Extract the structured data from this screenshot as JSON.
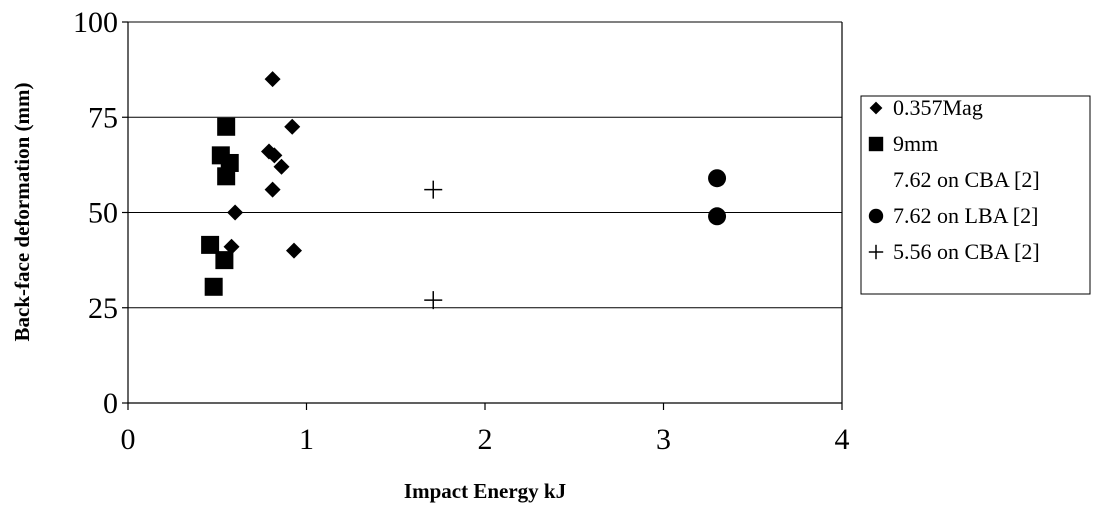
{
  "chart_data": {
    "type": "scatter",
    "title": "",
    "xlabel": "Impact Energy kJ",
    "ylabel": "Back-face deformation (mm)",
    "xlim": [
      0,
      4
    ],
    "ylim": [
      0,
      100
    ],
    "x_ticks": [
      "0",
      "1",
      "2",
      "3",
      "4"
    ],
    "y_ticks": [
      "0",
      "25",
      "50",
      "75",
      "100"
    ],
    "grid": "horizontal",
    "legend_position": "right",
    "series": [
      {
        "name": "0.357Mag",
        "marker": "diamond",
        "color": "#000000",
        "points": [
          {
            "x": 0.81,
            "y": 85
          },
          {
            "x": 0.92,
            "y": 72.5
          },
          {
            "x": 0.79,
            "y": 66
          },
          {
            "x": 0.82,
            "y": 65
          },
          {
            "x": 0.86,
            "y": 62
          },
          {
            "x": 0.81,
            "y": 56
          },
          {
            "x": 0.6,
            "y": 50
          },
          {
            "x": 0.58,
            "y": 41
          },
          {
            "x": 0.93,
            "y": 40
          }
        ]
      },
      {
        "name": "9mm",
        "marker": "square",
        "color": "#000000",
        "points": [
          {
            "x": 0.55,
            "y": 72.5
          },
          {
            "x": 0.52,
            "y": 65
          },
          {
            "x": 0.57,
            "y": 63
          },
          {
            "x": 0.55,
            "y": 59.5
          },
          {
            "x": 0.46,
            "y": 41.5
          },
          {
            "x": 0.54,
            "y": 37.5
          },
          {
            "x": 0.48,
            "y": 30.5
          }
        ]
      },
      {
        "name": "7.62 on CBA [2]",
        "marker": "none",
        "color": "#000000",
        "points": []
      },
      {
        "name": "7.62 on LBA [2]",
        "marker": "circle",
        "color": "#000000",
        "points": [
          {
            "x": 3.3,
            "y": 59
          },
          {
            "x": 3.3,
            "y": 49
          }
        ]
      },
      {
        "name": "5.56 on CBA [2]",
        "marker": "plus",
        "color": "#000000",
        "points": [
          {
            "x": 1.71,
            "y": 56
          },
          {
            "x": 1.71,
            "y": 27
          }
        ]
      }
    ]
  }
}
